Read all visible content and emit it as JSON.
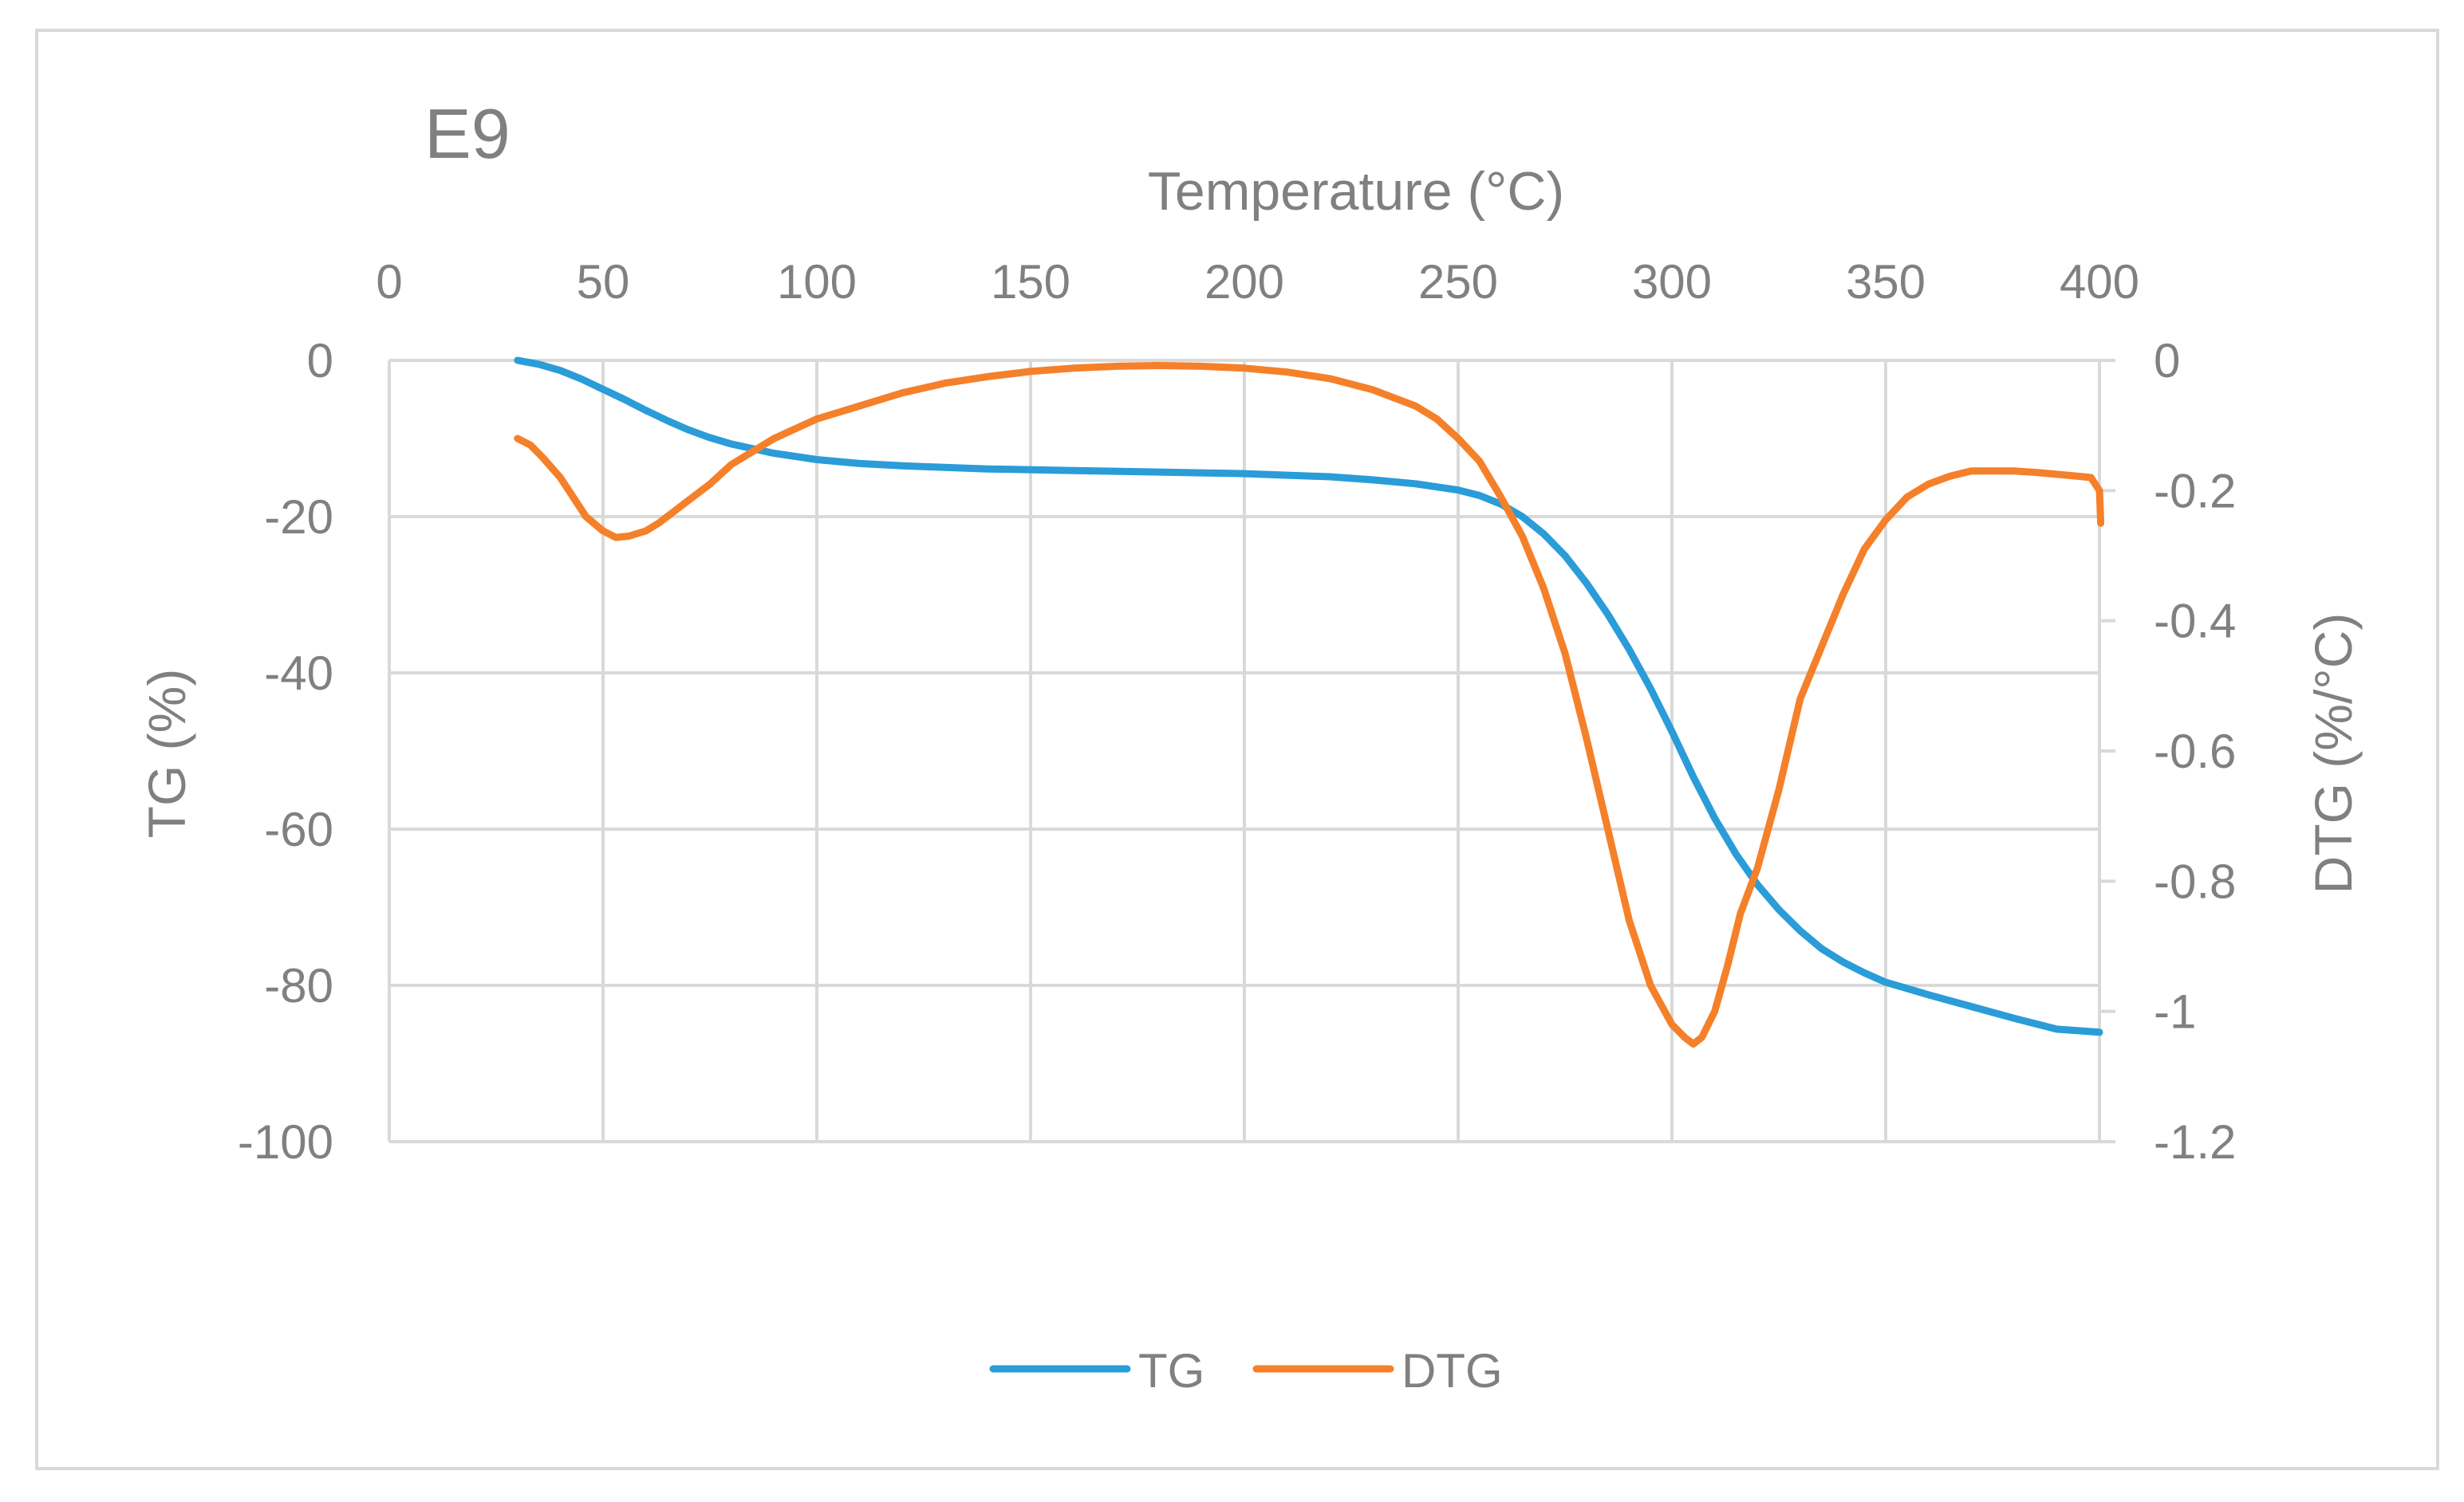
{
  "chart_data": {
    "type": "line",
    "title": "E9",
    "xlabel": "Temperature (°C)",
    "ylabel": "TG (%)",
    "y2label": "DTG (%/°C)",
    "xlim": [
      0,
      400
    ],
    "ylim": [
      -100,
      0
    ],
    "y2lim": [
      -1.2,
      0
    ],
    "x_ticks": [
      "0",
      "50",
      "100",
      "150",
      "200",
      "250",
      "300",
      "350",
      "400"
    ],
    "x_tick_values": [
      0,
      50,
      100,
      150,
      200,
      250,
      300,
      350,
      400
    ],
    "y_ticks": [
      "0",
      "-20",
      "-40",
      "-60",
      "-80",
      "-100"
    ],
    "y_tick_values": [
      0,
      -20,
      -40,
      -60,
      -80,
      -100
    ],
    "y2_ticks": [
      "0",
      "-0.2",
      "-0.4",
      "-0.6",
      "-0.8",
      "-1",
      "-1.2"
    ],
    "y2_tick_values": [
      0,
      -0.2,
      -0.4,
      -0.6,
      -0.8,
      -1.0,
      -1.2
    ],
    "grid": true,
    "legend_position": "bottom",
    "series": [
      {
        "name": "TG",
        "axis": "left",
        "color": "#2A9CD8",
        "x": [
          30,
          35,
          40,
          45,
          50,
          55,
          60,
          65,
          70,
          75,
          80,
          90,
          100,
          110,
          120,
          140,
          160,
          180,
          200,
          220,
          230,
          240,
          250,
          255,
          260,
          265,
          270,
          275,
          280,
          285,
          290,
          295,
          300,
          305,
          310,
          315,
          320,
          325,
          330,
          335,
          340,
          345,
          350,
          360,
          370,
          380,
          390,
          400
        ],
        "y": [
          0,
          -0.5,
          -1.3,
          -2.4,
          -3.7,
          -5.0,
          -6.4,
          -7.7,
          -8.9,
          -9.9,
          -10.7,
          -11.9,
          -12.7,
          -13.2,
          -13.5,
          -13.9,
          -14.1,
          -14.3,
          -14.5,
          -14.9,
          -15.3,
          -15.8,
          -16.6,
          -17.3,
          -18.4,
          -20.0,
          -22.2,
          -25.0,
          -28.5,
          -32.5,
          -37.0,
          -42.0,
          -47.5,
          -53.3,
          -58.6,
          -63.2,
          -67.1,
          -70.3,
          -73.0,
          -75.3,
          -77.0,
          -78.4,
          -79.6,
          -81.2,
          -82.7,
          -84.2,
          -85.6,
          -86.0
        ]
      },
      {
        "name": "DTG",
        "axis": "right",
        "color": "#F5802A",
        "x": [
          30,
          33,
          36,
          40,
          43,
          46,
          50,
          53,
          56,
          60,
          63,
          66,
          70,
          75,
          80,
          90,
          100,
          110,
          120,
          130,
          140,
          150,
          160,
          170,
          180,
          190,
          200,
          210,
          220,
          230,
          240,
          245,
          250,
          255,
          260,
          265,
          270,
          275,
          280,
          285,
          290,
          295,
          300,
          303,
          305,
          307,
          310,
          313,
          316,
          320,
          325,
          330,
          335,
          340,
          345,
          350,
          355,
          360,
          365,
          370,
          375,
          380,
          385,
          390,
          395,
          398,
          400,
          400.3
        ],
        "y": [
          -0.12,
          -0.13,
          -0.15,
          -0.18,
          -0.21,
          -0.24,
          -0.262,
          -0.272,
          -0.27,
          -0.262,
          -0.25,
          -0.235,
          -0.215,
          -0.19,
          -0.16,
          -0.12,
          -0.09,
          -0.07,
          -0.05,
          -0.035,
          -0.025,
          -0.017,
          -0.012,
          -0.009,
          -0.008,
          -0.009,
          -0.012,
          -0.018,
          -0.028,
          -0.045,
          -0.07,
          -0.09,
          -0.12,
          -0.155,
          -0.21,
          -0.27,
          -0.35,
          -0.45,
          -0.58,
          -0.72,
          -0.86,
          -0.96,
          -1.02,
          -1.04,
          -1.05,
          -1.04,
          -1.0,
          -0.93,
          -0.85,
          -0.78,
          -0.66,
          -0.52,
          -0.44,
          -0.36,
          -0.29,
          -0.245,
          -0.21,
          -0.19,
          -0.178,
          -0.17,
          -0.17,
          -0.17,
          -0.172,
          -0.175,
          -0.178,
          -0.18,
          -0.2,
          -0.25
        ]
      }
    ]
  }
}
